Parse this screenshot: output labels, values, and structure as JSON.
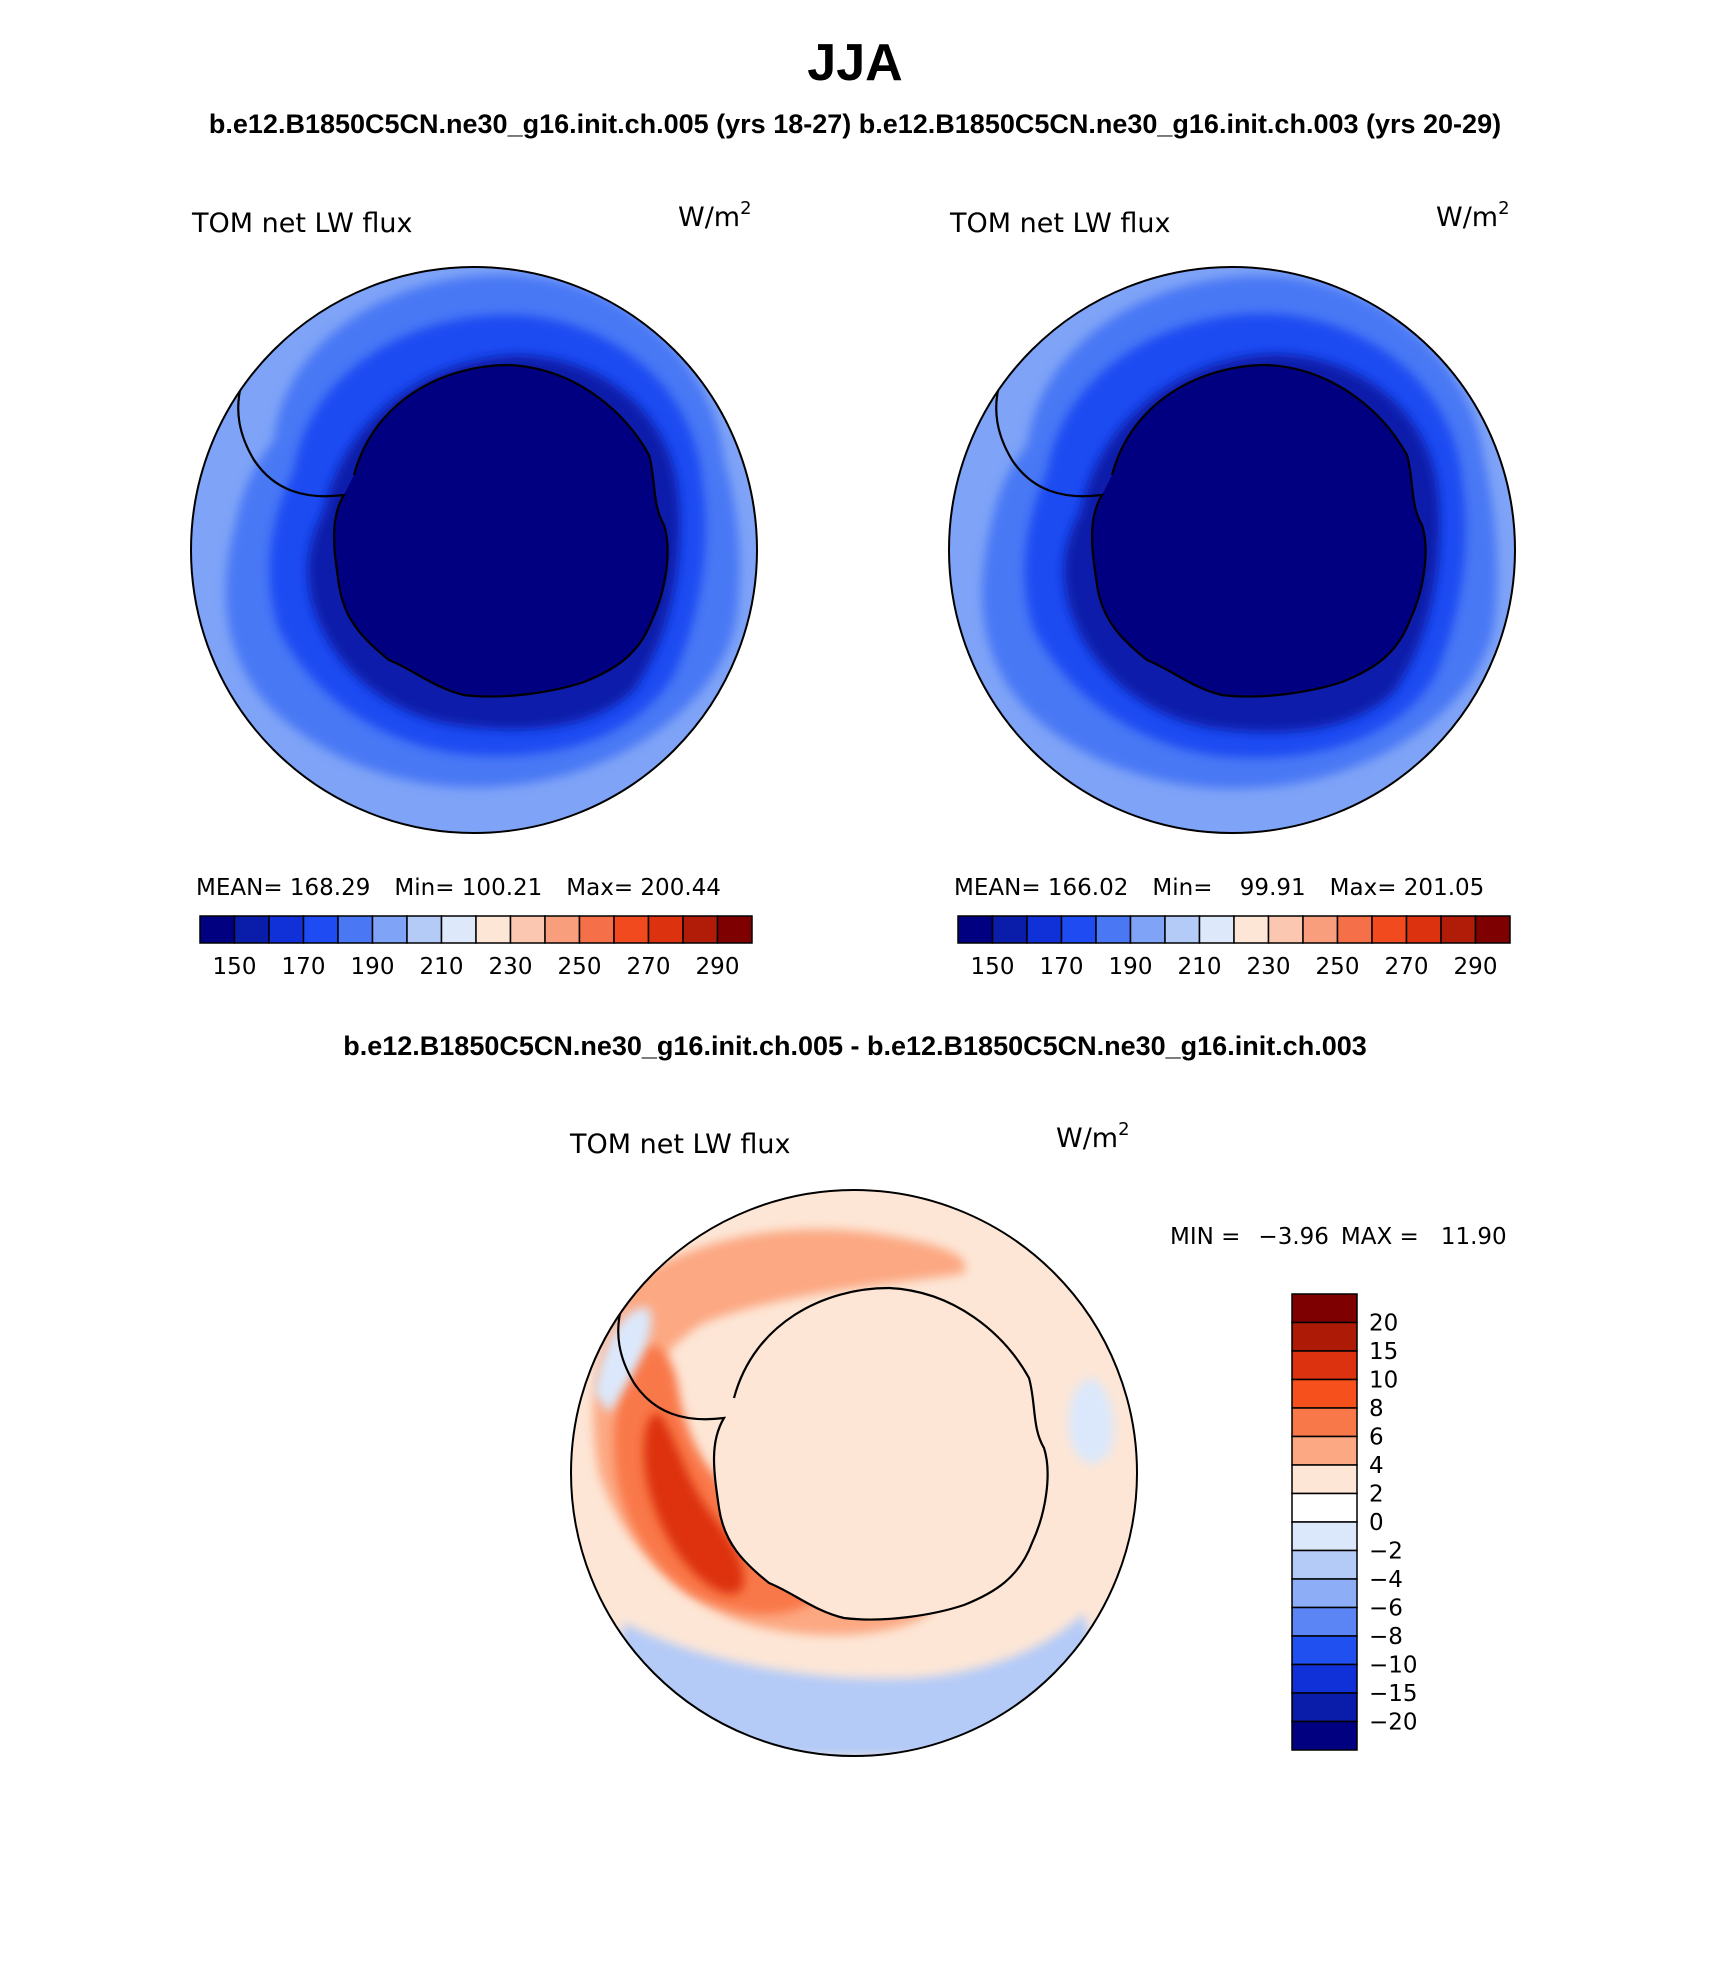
{
  "title": "JJA",
  "top_panels_caption": "b.e12.B1850C5CN.ne30_g16.init.ch.005 (yrs 18-27) b.e12.B1850C5CN.ne30_g16.init.ch.003 (yrs 20-29)",
  "diff_caption": "b.e12.B1850C5CN.ne30_g16.init.ch.005 - b.e12.B1850C5CN.ne30_g16.init.ch.003",
  "panels": [
    {
      "variable": "TOM net LW flux",
      "units_base": "W/m",
      "units_exp": "2",
      "stats": {
        "mean_label": "MEAN=",
        "mean": "168.29",
        "min_label": "Min=",
        "min": "100.21",
        "max_label": "Max=",
        "max": "200.44"
      }
    },
    {
      "variable": "TOM net LW flux",
      "units_base": "W/m",
      "units_exp": "2",
      "stats": {
        "mean_label": "MEAN=",
        "mean": "166.02",
        "min_label": "Min=",
        "min": "99.91",
        "max_label": "Max=",
        "max": "201.05"
      }
    }
  ],
  "diff_panel": {
    "variable": "TOM net LW flux",
    "units_base": "W/m",
    "units_exp": "2",
    "stats": {
      "min_label": "MIN =",
      "min": "−3.96",
      "max_label": "MAX =",
      "max": "11.90"
    }
  },
  "abs_colorbar": {
    "colors": [
      "#000080",
      "#0a1caa",
      "#1030d8",
      "#1f4cf2",
      "#4a78f5",
      "#7ea3f7",
      "#b4cbf8",
      "#dde9fb",
      "#fde6d6",
      "#fcc7b0",
      "#f99e7d",
      "#f57048",
      "#f04a1e",
      "#dd3210",
      "#b01c08",
      "#7f0000"
    ],
    "tick_labels": [
      "150",
      "170",
      "190",
      "210",
      "230",
      "250",
      "270",
      "290"
    ]
  },
  "diff_colorbar": {
    "colors": [
      "#7f0000",
      "#ad1a05",
      "#dd3210",
      "#f6501d",
      "#f9784a",
      "#fca882",
      "#fde6d6",
      "#ffffff",
      "#dbe8fb",
      "#b4cbf8",
      "#8daef7",
      "#5b85f4",
      "#2150f0",
      "#1030d8",
      "#0a1caa",
      "#000080"
    ],
    "tick_labels": [
      "20",
      "15",
      "10",
      "8",
      "6",
      "4",
      "2",
      "0",
      "−2",
      "−4",
      "−6",
      "−8",
      "−10",
      "−15",
      "−20"
    ]
  }
}
